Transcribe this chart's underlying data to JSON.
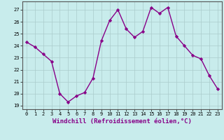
{
  "x": [
    0,
    1,
    2,
    3,
    4,
    5,
    6,
    7,
    8,
    9,
    10,
    11,
    12,
    13,
    14,
    15,
    16,
    17,
    18,
    19,
    20,
    21,
    22,
    23
  ],
  "y": [
    24.3,
    23.9,
    23.3,
    22.7,
    20.0,
    19.3,
    19.8,
    20.1,
    21.3,
    24.4,
    26.1,
    27.0,
    25.4,
    24.7,
    25.2,
    27.2,
    26.7,
    27.2,
    24.8,
    24.0,
    23.2,
    22.9,
    21.5,
    20.4
  ],
  "line_color": "#880088",
  "marker": "D",
  "markersize": 2.2,
  "linewidth": 1.0,
  "bg_color": "#c8ecec",
  "grid_color": "#aacccc",
  "ylim": [
    18.7,
    27.7
  ],
  "yticks": [
    19,
    20,
    21,
    22,
    23,
    24,
    25,
    26,
    27
  ],
  "xlim": [
    -0.5,
    23.5
  ],
  "xticks": [
    0,
    1,
    2,
    3,
    4,
    5,
    6,
    7,
    8,
    9,
    10,
    11,
    12,
    13,
    14,
    15,
    16,
    17,
    18,
    19,
    20,
    21,
    22,
    23
  ],
  "tick_fontsize": 5.0,
  "label_fontsize": 6.5,
  "label_color": "#880088"
}
